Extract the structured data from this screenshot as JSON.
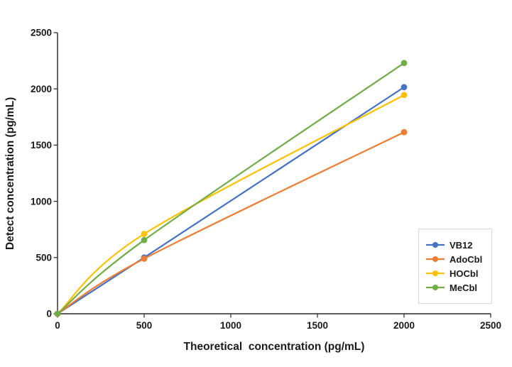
{
  "chart_data": {
    "type": "line",
    "title": "",
    "xlabel": "Theoretical  concentration (pg/mL)",
    "ylabel": "Detect concentration (pg/mL)",
    "x": [
      0,
      500,
      2000
    ],
    "series": [
      {
        "name": "VB12",
        "color": "#4472C4",
        "values": [
          0,
          500,
          2015
        ]
      },
      {
        "name": "AdoCbl",
        "color": "#ED7D31",
        "values": [
          0,
          490,
          1615
        ]
      },
      {
        "name": "HOCbl",
        "color": "#FFC000",
        "values": [
          0,
          710,
          1945
        ]
      },
      {
        "name": "MeCbl",
        "color": "#70AD47",
        "values": [
          0,
          655,
          2230
        ]
      }
    ],
    "xlim": [
      0,
      2500
    ],
    "ylim": [
      0,
      2500
    ],
    "xticks": [
      0,
      500,
      1000,
      1500,
      2000,
      2500
    ],
    "yticks": [
      0,
      500,
      1000,
      1500,
      2000,
      2500
    ],
    "grid": false,
    "smooth": true,
    "marker": "circle",
    "legend_position": "right-middle",
    "axis_color": "#262626",
    "legend_border_color": "#d9d9d9",
    "background_color": "#ffffff"
  }
}
